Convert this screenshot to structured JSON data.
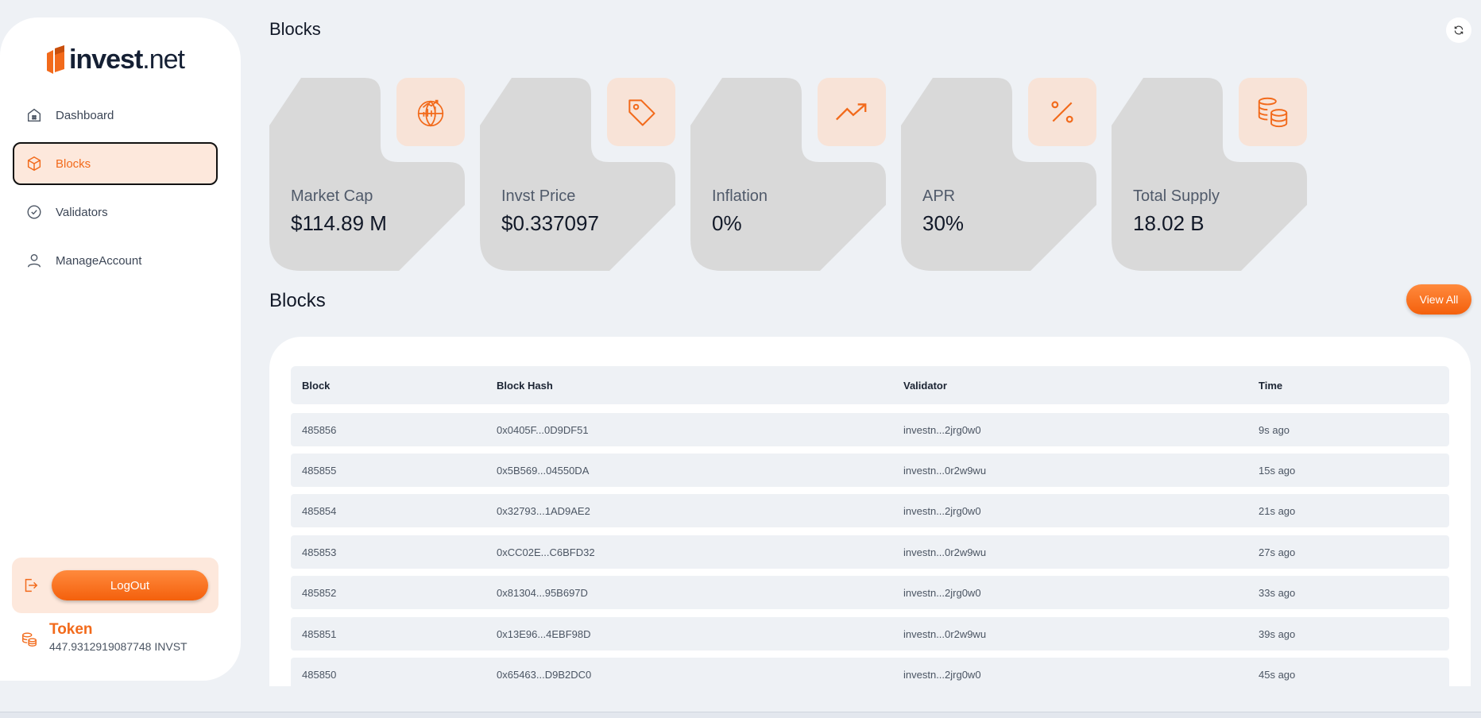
{
  "brand": {
    "logo_bold": "invest",
    "logo_light": ".net"
  },
  "sidebar": {
    "items": [
      {
        "label": "Dashboard",
        "icon": "home-icon"
      },
      {
        "label": "Blocks",
        "icon": "cube-icon",
        "active": true
      },
      {
        "label": "Validators",
        "icon": "check-badge-icon"
      },
      {
        "label": "ManageAccount",
        "icon": "user-icon"
      }
    ],
    "logout_label": "LogOut",
    "token_title": "Token",
    "token_amount": "447.9312919087748 INVST"
  },
  "header": {
    "title": "Blocks"
  },
  "cards": [
    {
      "label": "Market Cap",
      "value": "$114.89 M",
      "icon": "globe-chart-icon"
    },
    {
      "label": "Invst Price",
      "value": "$0.337097",
      "icon": "price-tag-icon"
    },
    {
      "label": "Inflation",
      "value": "0%",
      "icon": "trending-up-icon"
    },
    {
      "label": "APR",
      "value": "30%",
      "icon": "percent-icon"
    },
    {
      "label": "Total Supply",
      "value": "18.02 B",
      "icon": "coins-icon"
    }
  ],
  "blocks_section": {
    "title": "Blocks",
    "view_all_label": "View All",
    "columns": [
      "Block",
      "Block Hash",
      "Validator",
      "Time"
    ],
    "rows": [
      [
        "485856",
        "0x0405F...0D9DF51",
        "investn...2jrg0w0",
        "9s ago"
      ],
      [
        "485855",
        "0x5B569...04550DA",
        "investn...0r2w9wu",
        "15s ago"
      ],
      [
        "485854",
        "0x32793...1AD9AE2",
        "investn...2jrg0w0",
        "21s ago"
      ],
      [
        "485853",
        "0xCC02E...C6BFD32",
        "investn...0r2w9wu",
        "27s ago"
      ],
      [
        "485852",
        "0x81304...95B697D",
        "investn...2jrg0w0",
        "33s ago"
      ],
      [
        "485851",
        "0x13E96...4EBF98D",
        "investn...0r2w9wu",
        "39s ago"
      ],
      [
        "485850",
        "0x65463...D9B2DC0",
        "investn...2jrg0w0",
        "45s ago"
      ]
    ]
  },
  "colors": {
    "accent": "#f26a1b",
    "accent_light": "#fde8dc",
    "card_bg": "#d9d9d9",
    "page_bg": "#eef1f5"
  }
}
